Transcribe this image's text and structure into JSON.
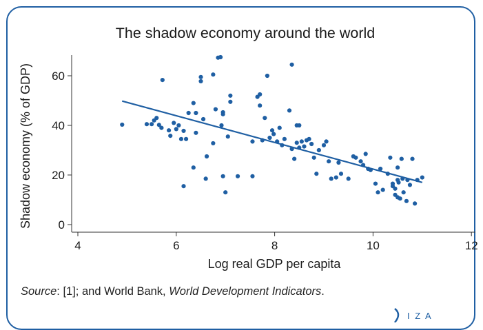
{
  "chart_data": {
    "type": "scatter",
    "title": "The shadow economy around the world",
    "xlabel": "Log real GDP per capita",
    "ylabel": "Shadow economy (% of GDP)",
    "xlim": [
      4,
      12
    ],
    "ylim": [
      0,
      70
    ],
    "xticks": [
      "4",
      "6",
      "8",
      "10",
      "12"
    ],
    "yticks": [
      "0",
      "20",
      "40",
      "60"
    ],
    "grid": false,
    "legend": "none",
    "point_color": "#1f5fa3",
    "line_color": "#1f5fa3",
    "fit_line": {
      "x": [
        4.9,
        11.0
      ],
      "y": [
        49.8,
        17.0
      ]
    },
    "points": [
      [
        4.9,
        40.3
      ],
      [
        5.4,
        40.5
      ],
      [
        5.5,
        40.5
      ],
      [
        5.55,
        42.0
      ],
      [
        5.6,
        43.0
      ],
      [
        5.65,
        40.2
      ],
      [
        5.7,
        39.0
      ],
      [
        5.72,
        58.3
      ],
      [
        5.85,
        38.0
      ],
      [
        5.88,
        35.8
      ],
      [
        5.95,
        41.0
      ],
      [
        6.0,
        38.5
      ],
      [
        6.05,
        40.0
      ],
      [
        6.1,
        34.5
      ],
      [
        6.15,
        37.8
      ],
      [
        6.15,
        15.5
      ],
      [
        6.2,
        34.5
      ],
      [
        6.25,
        45.0
      ],
      [
        6.35,
        49.0
      ],
      [
        6.35,
        23.0
      ],
      [
        6.4,
        37.0
      ],
      [
        6.4,
        45.0
      ],
      [
        6.5,
        59.5
      ],
      [
        6.5,
        57.8
      ],
      [
        6.55,
        42.5
      ],
      [
        6.6,
        18.5
      ],
      [
        6.62,
        27.5
      ],
      [
        6.75,
        60.5
      ],
      [
        6.75,
        32.8
      ],
      [
        6.8,
        46.5
      ],
      [
        6.85,
        67.3
      ],
      [
        6.9,
        67.5
      ],
      [
        6.92,
        40.0
      ],
      [
        6.95,
        44.5
      ],
      [
        6.95,
        45.3
      ],
      [
        6.95,
        19.5
      ],
      [
        7.0,
        13.0
      ],
      [
        7.05,
        35.5
      ],
      [
        7.1,
        52.0
      ],
      [
        7.1,
        49.5
      ],
      [
        7.25,
        19.5
      ],
      [
        7.55,
        33.5
      ],
      [
        7.55,
        19.5
      ],
      [
        7.65,
        51.5
      ],
      [
        7.7,
        52.5
      ],
      [
        7.7,
        48.0
      ],
      [
        7.75,
        34.0
      ],
      [
        7.8,
        43.0
      ],
      [
        7.85,
        60.0
      ],
      [
        7.9,
        35.0
      ],
      [
        7.95,
        38.0
      ],
      [
        7.98,
        36.5
      ],
      [
        8.05,
        33.5
      ],
      [
        8.1,
        39.0
      ],
      [
        8.15,
        32.0
      ],
      [
        8.2,
        34.5
      ],
      [
        8.3,
        46.0
      ],
      [
        8.35,
        64.5
      ],
      [
        8.35,
        30.5
      ],
      [
        8.4,
        26.5
      ],
      [
        8.45,
        40.0
      ],
      [
        8.45,
        33.0
      ],
      [
        8.5,
        40.0
      ],
      [
        8.5,
        31.0
      ],
      [
        8.55,
        33.5
      ],
      [
        8.6,
        31.5
      ],
      [
        8.65,
        34.0
      ],
      [
        8.7,
        34.5
      ],
      [
        8.75,
        32.5
      ],
      [
        8.8,
        27.0
      ],
      [
        8.85,
        20.5
      ],
      [
        8.9,
        30.0
      ],
      [
        9.0,
        32.0
      ],
      [
        9.05,
        33.5
      ],
      [
        9.1,
        25.5
      ],
      [
        9.15,
        18.5
      ],
      [
        9.25,
        19.0
      ],
      [
        9.3,
        25.0
      ],
      [
        9.35,
        20.5
      ],
      [
        9.5,
        18.5
      ],
      [
        9.6,
        27.5
      ],
      [
        9.65,
        27.0
      ],
      [
        9.75,
        25.5
      ],
      [
        9.8,
        24.0
      ],
      [
        9.85,
        28.5
      ],
      [
        9.9,
        22.5
      ],
      [
        9.95,
        22.0
      ],
      [
        10.05,
        16.5
      ],
      [
        10.1,
        13.0
      ],
      [
        10.15,
        22.5
      ],
      [
        10.2,
        14.0
      ],
      [
        10.3,
        20.5
      ],
      [
        10.35,
        27.0
      ],
      [
        10.4,
        15.5
      ],
      [
        10.45,
        14.5
      ],
      [
        10.45,
        12.0
      ],
      [
        10.5,
        18.0
      ],
      [
        10.5,
        23.0
      ],
      [
        10.52,
        17.0
      ],
      [
        10.55,
        10.5
      ],
      [
        10.58,
        26.5
      ],
      [
        10.6,
        18.5
      ],
      [
        10.62,
        13.0
      ],
      [
        10.68,
        9.5
      ],
      [
        10.75,
        16.0
      ],
      [
        10.8,
        26.5
      ],
      [
        10.85,
        8.5
      ],
      [
        10.9,
        18.0
      ],
      [
        11.0,
        19.0
      ],
      [
        10.4,
        16.5
      ],
      [
        10.7,
        18.0
      ],
      [
        10.5,
        11.0
      ]
    ]
  },
  "source": {
    "label": "Source",
    "text_a": ": [1]; and World Bank, ",
    "text_b": "World Development Indicators",
    "text_c": "."
  },
  "logo": {
    "text": "I Z A"
  }
}
